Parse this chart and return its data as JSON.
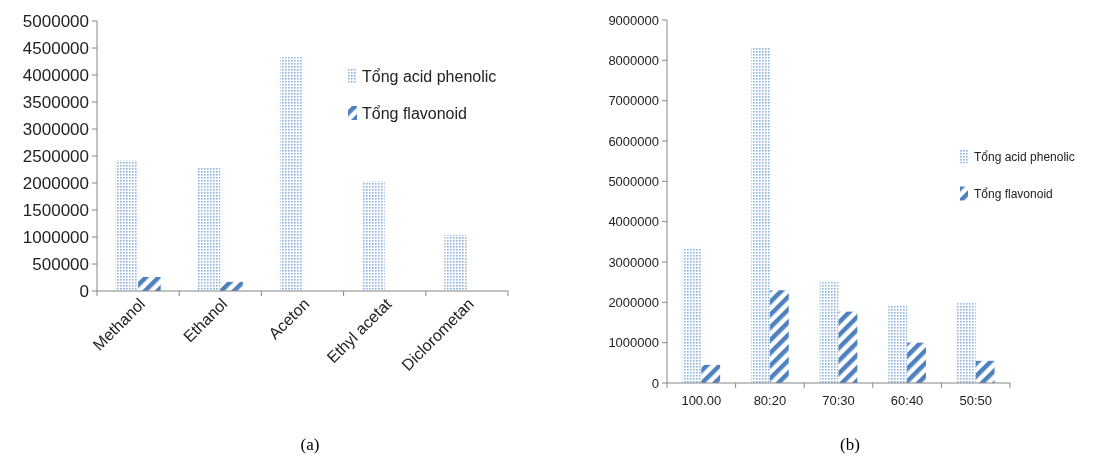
{
  "chart_data": [
    {
      "type": "bar",
      "categories": [
        "Methanol",
        "Ethanol",
        "Aceton",
        "Ethyl acetat",
        "Diclorometan"
      ],
      "series": [
        {
          "name": "Tổng acid phenolic",
          "color": "#8db3e2",
          "values": [
            2420000,
            2280000,
            4330000,
            2030000,
            1040000
          ]
        },
        {
          "name": "Tổng flavonoid",
          "color": "#4f81bd",
          "values": [
            260000,
            170000,
            null,
            null,
            null
          ]
        }
      ],
      "ylim": [
        0,
        5000000
      ],
      "yticks": [
        0,
        500000,
        1000000,
        1500000,
        2000000,
        2500000,
        3000000,
        3500000,
        4000000,
        4500000,
        5000000
      ],
      "grid": false,
      "legend": "top right",
      "annotations": [
        "(a)"
      ]
    },
    {
      "type": "bar",
      "categories": [
        "100.00",
        "80:20",
        "70:30",
        "60:40",
        "50:50"
      ],
      "series": [
        {
          "name": "Tổng acid phenolic",
          "color": "#8db3e2",
          "values": [
            3350000,
            8330000,
            2500000,
            1930000,
            1980000
          ]
        },
        {
          "name": "Tổng flavonoid",
          "color": "#4f81bd",
          "values": [
            450000,
            2300000,
            1770000,
            1000000,
            550000
          ]
        }
      ],
      "ylim": [
        0,
        9000000
      ],
      "yticks": [
        0,
        1000000,
        2000000,
        3000000,
        4000000,
        5000000,
        6000000,
        7000000,
        8000000,
        9000000
      ],
      "grid": false,
      "legend": "right",
      "annotations": [
        "(b)"
      ]
    }
  ]
}
